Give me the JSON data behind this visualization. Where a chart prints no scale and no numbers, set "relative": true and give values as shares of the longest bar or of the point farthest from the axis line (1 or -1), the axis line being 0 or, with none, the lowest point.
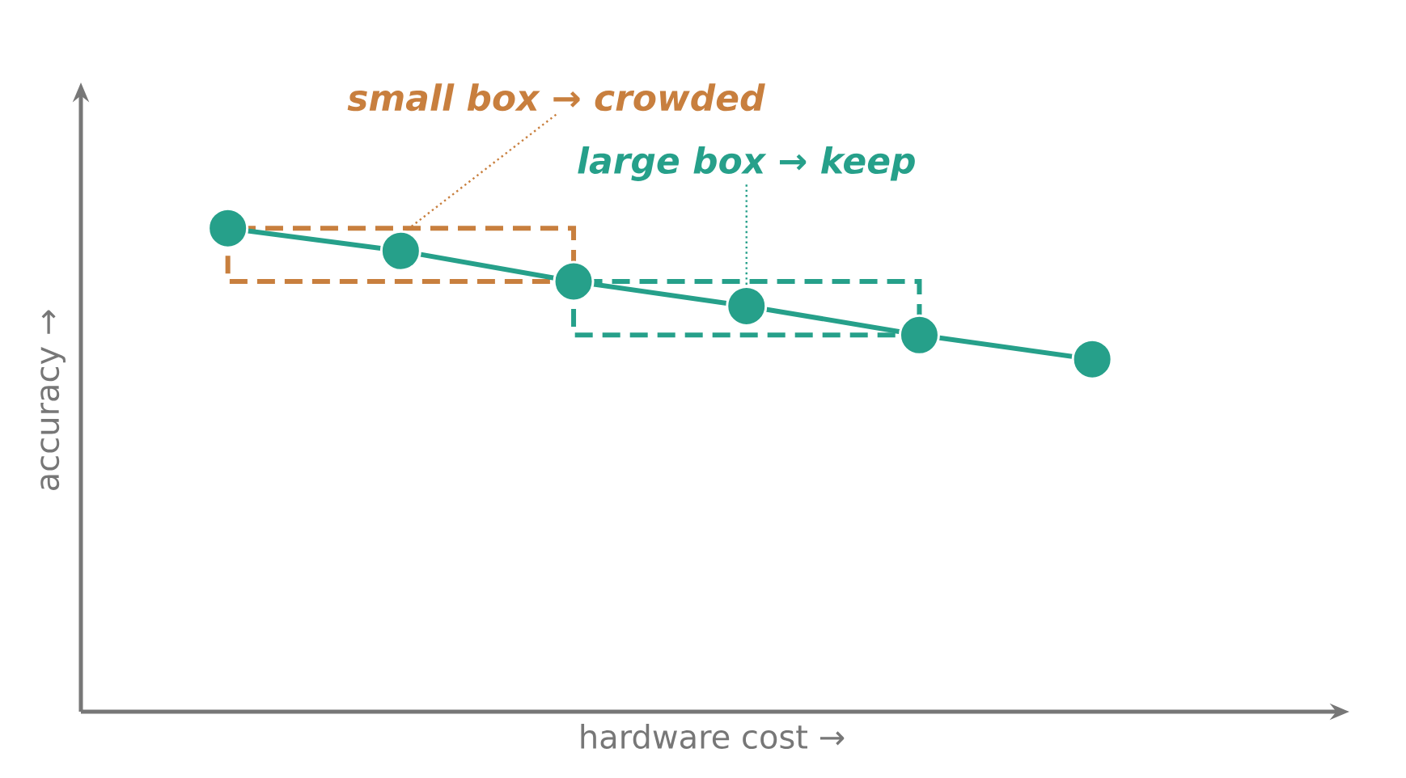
{
  "chart_data": {
    "type": "line",
    "xlabel": "hardware cost →",
    "ylabel": "accuracy →",
    "relative": true,
    "marker": "circle",
    "categories": [
      null,
      null,
      null,
      null,
      null,
      null
    ],
    "series": [
      {
        "color": "#26a08a",
        "values": [
          1,
          0.953,
          0.89,
          0.839,
          0.779,
          0.729
        ]
      }
    ],
    "annotations": [
      "small box → crowded",
      "large box → keep"
    ]
  }
}
